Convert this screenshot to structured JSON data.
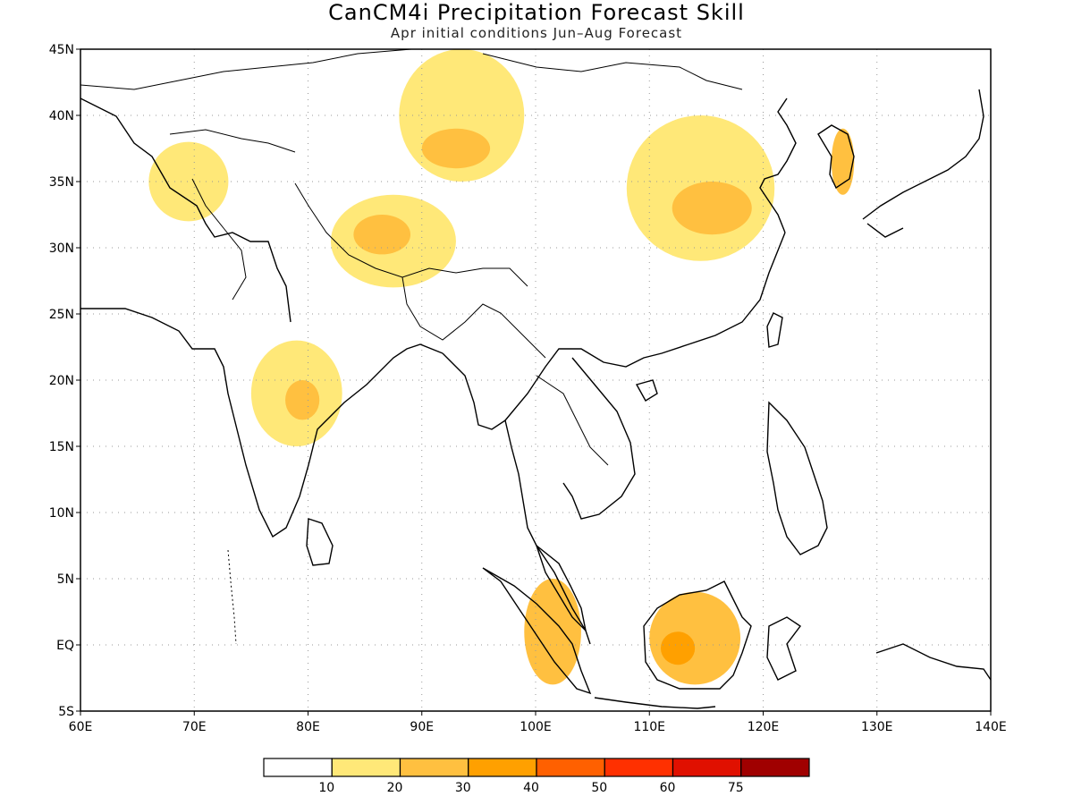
{
  "title": "CanCM4i Precipitation Forecast Skill",
  "subtitle": "Apr initial conditions   Jun–Aug Forecast",
  "map": {
    "region": {
      "lon_min": 60,
      "lon_max": 140,
      "lat_min": -5,
      "lat_max": 45
    },
    "lat_ticks": [
      {
        "value": 45,
        "label": "45N"
      },
      {
        "value": 40,
        "label": "40N"
      },
      {
        "value": 35,
        "label": "35N"
      },
      {
        "value": 30,
        "label": "30N"
      },
      {
        "value": 25,
        "label": "25N"
      },
      {
        "value": 20,
        "label": "20N"
      },
      {
        "value": 15,
        "label": "15N"
      },
      {
        "value": 10,
        "label": "10N"
      },
      {
        "value": 5,
        "label": "5N"
      },
      {
        "value": 0,
        "label": "EQ"
      },
      {
        "value": -5,
        "label": "5S"
      }
    ],
    "lon_ticks": [
      {
        "value": 60,
        "label": "60E"
      },
      {
        "value": 70,
        "label": "70E"
      },
      {
        "value": 80,
        "label": "80E"
      },
      {
        "value": 90,
        "label": "90E"
      },
      {
        "value": 100,
        "label": "100E"
      },
      {
        "value": 110,
        "label": "110E"
      },
      {
        "value": 120,
        "label": "120E"
      },
      {
        "value": 130,
        "label": "130E"
      },
      {
        "value": 140,
        "label": "140E"
      }
    ],
    "grid": true,
    "skill_regions": [
      {
        "name": "northwest-india-pakistan",
        "level": 1,
        "lon": [
          66,
          73
        ],
        "lat": [
          32,
          38
        ]
      },
      {
        "name": "tibet-ne-india",
        "level": 1,
        "lon": [
          82,
          93
        ],
        "lat": [
          27,
          34
        ]
      },
      {
        "name": "tibet-core",
        "level": 2,
        "lon": [
          84,
          89
        ],
        "lat": [
          29.5,
          32.5
        ]
      },
      {
        "name": "xinjiang-mongolia",
        "level": 1,
        "lon": [
          88,
          99
        ],
        "lat": [
          35,
          45
        ]
      },
      {
        "name": "xinjiang-core",
        "level": 2,
        "lon": [
          90,
          96
        ],
        "lat": [
          36,
          39
        ]
      },
      {
        "name": "central-china",
        "level": 1,
        "lon": [
          108,
          121
        ],
        "lat": [
          29,
          40
        ]
      },
      {
        "name": "central-china-core",
        "level": 2,
        "lon": [
          112,
          119
        ],
        "lat": [
          31,
          35
        ]
      },
      {
        "name": "central-india",
        "level": 1,
        "lon": [
          75,
          83
        ],
        "lat": [
          15,
          23
        ]
      },
      {
        "name": "central-india-core",
        "level": 2,
        "lon": [
          78,
          81
        ],
        "lat": [
          17,
          20
        ]
      },
      {
        "name": "borneo",
        "level": 2,
        "lon": [
          110,
          118
        ],
        "lat": [
          -3,
          4
        ]
      },
      {
        "name": "borneo-core",
        "level": 3,
        "lon": [
          111,
          114
        ],
        "lat": [
          -1.5,
          1
        ]
      },
      {
        "name": "malay-sumatra",
        "level": 2,
        "lon": [
          99,
          104
        ],
        "lat": [
          -3,
          5
        ]
      },
      {
        "name": "korea",
        "level": 2,
        "lon": [
          126,
          128
        ],
        "lat": [
          34,
          39
        ]
      }
    ]
  },
  "colorbar": {
    "colors": [
      "#ffffff",
      "#ffe878",
      "#ffc040",
      "#ffa000",
      "#ff6000",
      "#ff3000",
      "#e01000",
      "#a00000"
    ],
    "labels": [
      "10",
      "20",
      "30",
      "40",
      "50",
      "60",
      "75"
    ]
  }
}
